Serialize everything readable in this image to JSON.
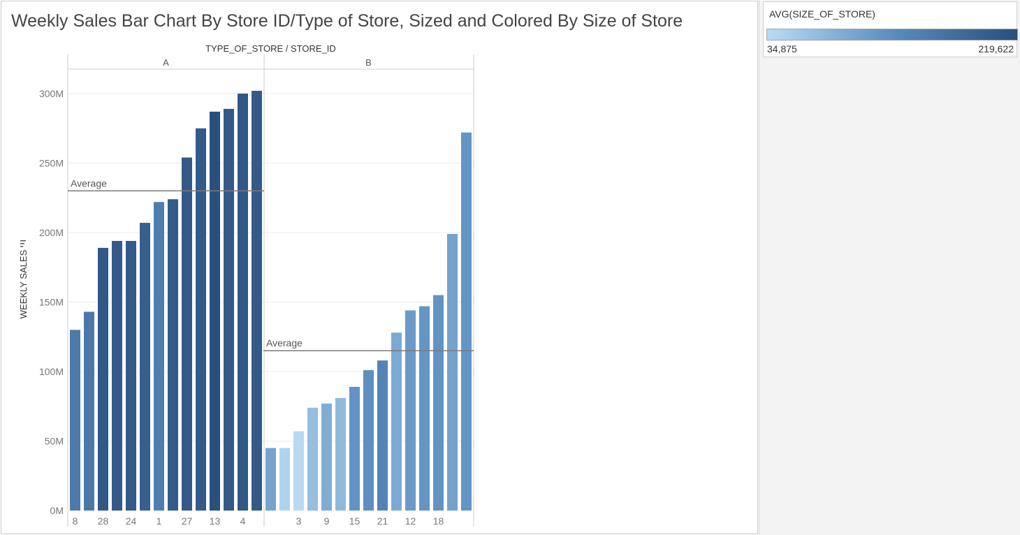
{
  "title": "Weekly Sales Bar Chart By Store ID/Type of Store, Sized and Colored By Size of Store",
  "legend": {
    "title": "AVG(SIZE_OF_STORE)",
    "min_label": "34,875",
    "max_label": "219,622",
    "color_low": "#b9dcf3",
    "color_high": "#2a4f7c"
  },
  "chart_data": {
    "type": "bar",
    "title": "Weekly Sales Bar Chart By Store ID/Type of Store, Sized and Colored By Size of Store",
    "column_header": "TYPE_OF_STORE / STORE_ID",
    "ylabel": "WEEKLY SALES",
    "ylabel_icon": "sort-descending-icon",
    "ylim": [
      0,
      320000000
    ],
    "yticks": [
      0,
      50000000,
      100000000,
      150000000,
      200000000,
      250000000,
      300000000
    ],
    "ytick_labels": [
      "0M",
      "50M",
      "100M",
      "150M",
      "200M",
      "250M",
      "300M"
    ],
    "grid": true,
    "legend_position": "top-right",
    "color_measure": "AVG(SIZE_OF_STORE)",
    "color_range": [
      34875,
      219622
    ],
    "average_label": "Average",
    "panes": [
      {
        "type_of_store": "A",
        "average": 230000000,
        "bars": [
          {
            "store_id": "8",
            "value": 130000000,
            "size": 155000
          },
          {
            "store_id": "",
            "value": 143000000,
            "size": 158000
          },
          {
            "store_id": "28",
            "value": 189000000,
            "size": 206000
          },
          {
            "store_id": "",
            "value": 194000000,
            "size": 203000
          },
          {
            "store_id": "24",
            "value": 194000000,
            "size": 203000
          },
          {
            "store_id": "",
            "value": 207000000,
            "size": 196000
          },
          {
            "store_id": "1",
            "value": 222000000,
            "size": 151000
          },
          {
            "store_id": "",
            "value": 224000000,
            "size": 200000
          },
          {
            "store_id": "27",
            "value": 254000000,
            "size": 204000
          },
          {
            "store_id": "",
            "value": 275000000,
            "size": 202000
          },
          {
            "store_id": "13",
            "value": 287000000,
            "size": 219000
          },
          {
            "store_id": "",
            "value": 289000000,
            "size": 205000
          },
          {
            "store_id": "4",
            "value": 300000000,
            "size": 206000
          },
          {
            "store_id": "",
            "value": 302000000,
            "size": 203000
          }
        ]
      },
      {
        "type_of_store": "B",
        "average": 115000000,
        "bars": [
          {
            "store_id": "",
            "value": 45000000,
            "size": 100000
          },
          {
            "store_id": "",
            "value": 45000000,
            "size": 45000
          },
          {
            "store_id": "3",
            "value": 57000000,
            "size": 37000
          },
          {
            "store_id": "",
            "value": 74000000,
            "size": 70000
          },
          {
            "store_id": "9",
            "value": 77000000,
            "size": 90000
          },
          {
            "store_id": "",
            "value": 81000000,
            "size": 75000
          },
          {
            "store_id": "15",
            "value": 89000000,
            "size": 120000
          },
          {
            "store_id": "",
            "value": 101000000,
            "size": 125000
          },
          {
            "store_id": "21",
            "value": 108000000,
            "size": 140000
          },
          {
            "store_id": "",
            "value": 128000000,
            "size": 95000
          },
          {
            "store_id": "12",
            "value": 144000000,
            "size": 112000
          },
          {
            "store_id": "",
            "value": 147000000,
            "size": 118000
          },
          {
            "store_id": "18",
            "value": 155000000,
            "size": 120000
          },
          {
            "store_id": "",
            "value": 199000000,
            "size": 103000
          },
          {
            "store_id": "",
            "value": 272000000,
            "size": 118000
          }
        ]
      }
    ]
  }
}
